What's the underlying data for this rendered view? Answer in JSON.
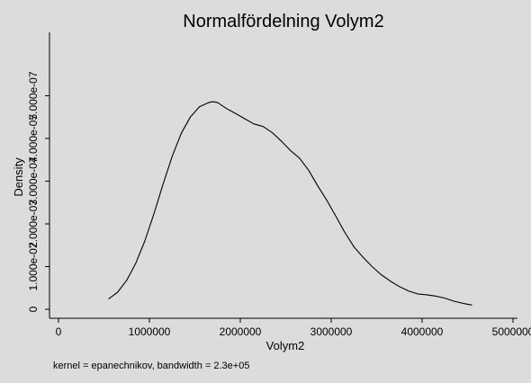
{
  "chart_data": {
    "type": "line",
    "title": "Normalfördelning Volym2",
    "xlabel": "Volym2",
    "ylabel": "Density",
    "note": "kernel = epanechnikov, bandwidth =  2.3e+05",
    "xlim": [
      0,
      5000000
    ],
    "ylim": [
      0,
      6e-07
    ],
    "x_ticks": [
      0,
      1000000,
      2000000,
      3000000,
      4000000,
      5000000
    ],
    "x_tick_labels": [
      "0",
      "1000000",
      "2000000",
      "3000000",
      "4000000",
      "5000000"
    ],
    "y_ticks": [
      0,
      1e-07,
      2e-07,
      3e-07,
      4e-07,
      5e-07
    ],
    "y_tick_labels": [
      "0",
      "1.000e-07",
      "2.000e-07",
      "3.000e-07",
      "4.000e-07",
      "5.000e-07"
    ],
    "grid": false,
    "series": [
      {
        "x": [
          550000,
          650000,
          750000,
          850000,
          950000,
          1050000,
          1150000,
          1250000,
          1350000,
          1450000,
          1550000,
          1650000,
          1700000,
          1750000,
          1850000,
          1950000,
          2050000,
          2150000,
          2250000,
          2350000,
          2450000,
          2550000,
          2650000,
          2750000,
          2850000,
          2950000,
          3050000,
          3150000,
          3250000,
          3350000,
          3450000,
          3550000,
          3650000,
          3750000,
          3850000,
          3950000,
          4050000,
          4150000,
          4250000,
          4350000,
          4450000,
          4550000
        ],
        "y": [
          2.4e-08,
          4e-08,
          6.8e-08,
          1.08e-07,
          1.6e-07,
          2.24e-07,
          2.93e-07,
          3.58e-07,
          4.12e-07,
          4.5e-07,
          4.74e-07,
          4.84e-07,
          4.86e-07,
          4.84e-07,
          4.7e-07,
          4.58e-07,
          4.46e-07,
          4.34e-07,
          4.28e-07,
          4.14e-07,
          3.94e-07,
          3.72e-07,
          3.54e-07,
          3.26e-07,
          2.9e-07,
          2.56e-07,
          2.18e-07,
          1.8e-07,
          1.46e-07,
          1.22e-07,
          1e-07,
          8.1e-08,
          6.6e-08,
          5.3e-08,
          4.3e-08,
          3.6e-08,
          3.4e-08,
          3.1e-08,
          2.6e-08,
          1.9e-08,
          1.4e-08,
          1e-08
        ]
      }
    ]
  }
}
